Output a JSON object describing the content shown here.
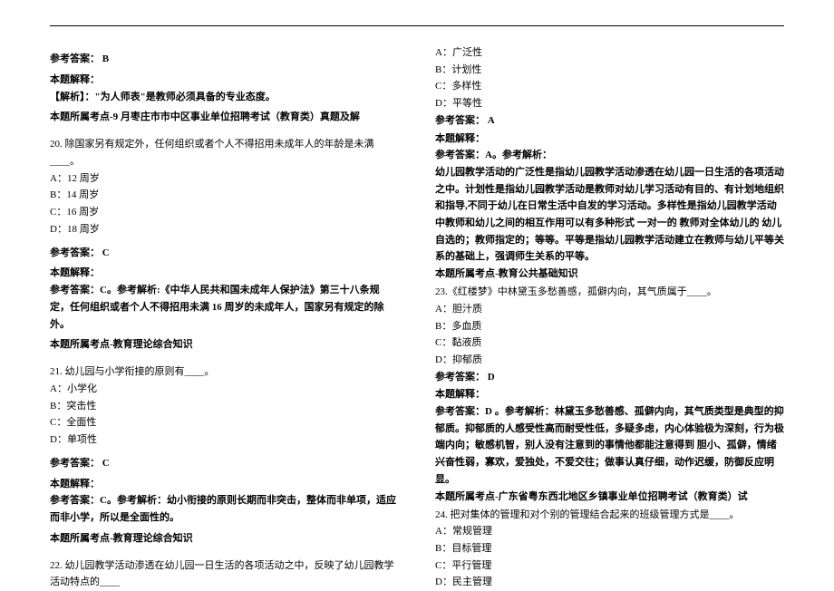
{
  "left": {
    "ans19_label": "参考答案：",
    "ans19_value": "B",
    "explain19_title": "本题解释：",
    "explain19_body": "【解析】：\"为人师表\"是教师必须具备的专业态度。",
    "topic19": "本题所属考点-9 月枣庄市市中区事业单位招聘考试（教育类）真题及解",
    "q20": {
      "stem": "20. 除国家另有规定外，任何组织或者个人不得招用未成年人的年龄是未满____。",
      "a": "A：12 周岁",
      "b": "B：14 周岁",
      "c": "C：16 周岁",
      "d": "D：18 周岁",
      "ans_label": "参考答案：",
      "ans_value": "C",
      "explain_title": "本题解释：",
      "explain_body": "参考答案：C。参考解析:《中华人民共和国未成年人保护法》第三十八条规定，任何组织或者个人不得招用未满 16 周岁的未成年人，国家另有规定的除外。",
      "topic": "本题所属考点-教育理论综合知识"
    },
    "q21": {
      "stem": "21. 幼儿园与小学衔接的原则有____。",
      "a": "A：小学化",
      "b": "B：突击性",
      "c": "C：全面性",
      "d": "D：单项性",
      "ans_label": "参考答案：",
      "ans_value": "C",
      "explain_title": "本题解释：",
      "explain_body": "参考答案：C。参考解析：幼小衔接的原则长期而非突击，整体而非单项，适应而非小学，所以是全面性的。",
      "topic": "本题所属考点-教育理论综合知识"
    },
    "q22_stem": "22. 幼儿园教学活动渗透在幼儿园一日生活的各项活动之中，反映了幼儿园教学活动特点的____"
  },
  "right": {
    "q22_opts": {
      "a": "A：广泛性",
      "b": "B：计划性",
      "c": "C：多样性",
      "d": "D：平等性"
    },
    "q22": {
      "ans_label": "参考答案：",
      "ans_value": "A",
      "explain_title": "本题解释：",
      "explain_body": "参考答案：A。参考解析：",
      "explain_cont": "幼儿园教学活动的广泛性是指幼儿园教学活动渗透在幼儿园一日生活的各项活动之中。计划性是指幼儿园教学活动是教师对幼儿学习活动有目的、有计划地组织和指导,不同于幼儿在日常生活中自发的学习活动。多样性是指幼儿园教学活动中教师和幼儿之间的相互作用可以有多种形式  一对一的  教师对全体幼儿的 幼儿自选的；教师指定的；等等。平等是指幼儿园教学活动建立在教师与幼儿平等关系的基础上，强调师生关系的平等。",
      "topic": "本题所属考点-教育公共基础知识"
    },
    "q23": {
      "stem": "23.《红楼梦》中林黛玉多愁善感，孤僻内向，其气质属于____。",
      "a": "A：胆汁质",
      "b": "B：多血质",
      "c": "C：黏液质",
      "d": "D：抑郁质",
      "ans_label": "参考答案：",
      "ans_value": "D",
      "explain_title": "本题解释：",
      "explain_body": "参考答案：D 。参考解析：林黛玉多愁善感、孤僻内向，其气质类型是典型的抑郁质。抑郁质的人感受性高而耐受性低，多疑多虑，内心体验极为深刻，行为极端内向；敏感机智，别人没有注意到的事情他都能注意得到 胆小、孤僻，情绪兴奋性弱，寡欢，爱独处，不爱交往；做事认真仔细，动作迟缓，防御反应明显。",
      "topic": "本题所属考点-广东省粤东西北地区乡镇事业单位招聘考试（教育类）试"
    },
    "q24": {
      "stem": "24. 把对集体的管理和对个别的管理结合起来的班级管理方式是____。",
      "a": "A：常规管理",
      "b": "B：目标管理",
      "c": "C：平行管理",
      "d": "D：民主管理"
    }
  }
}
